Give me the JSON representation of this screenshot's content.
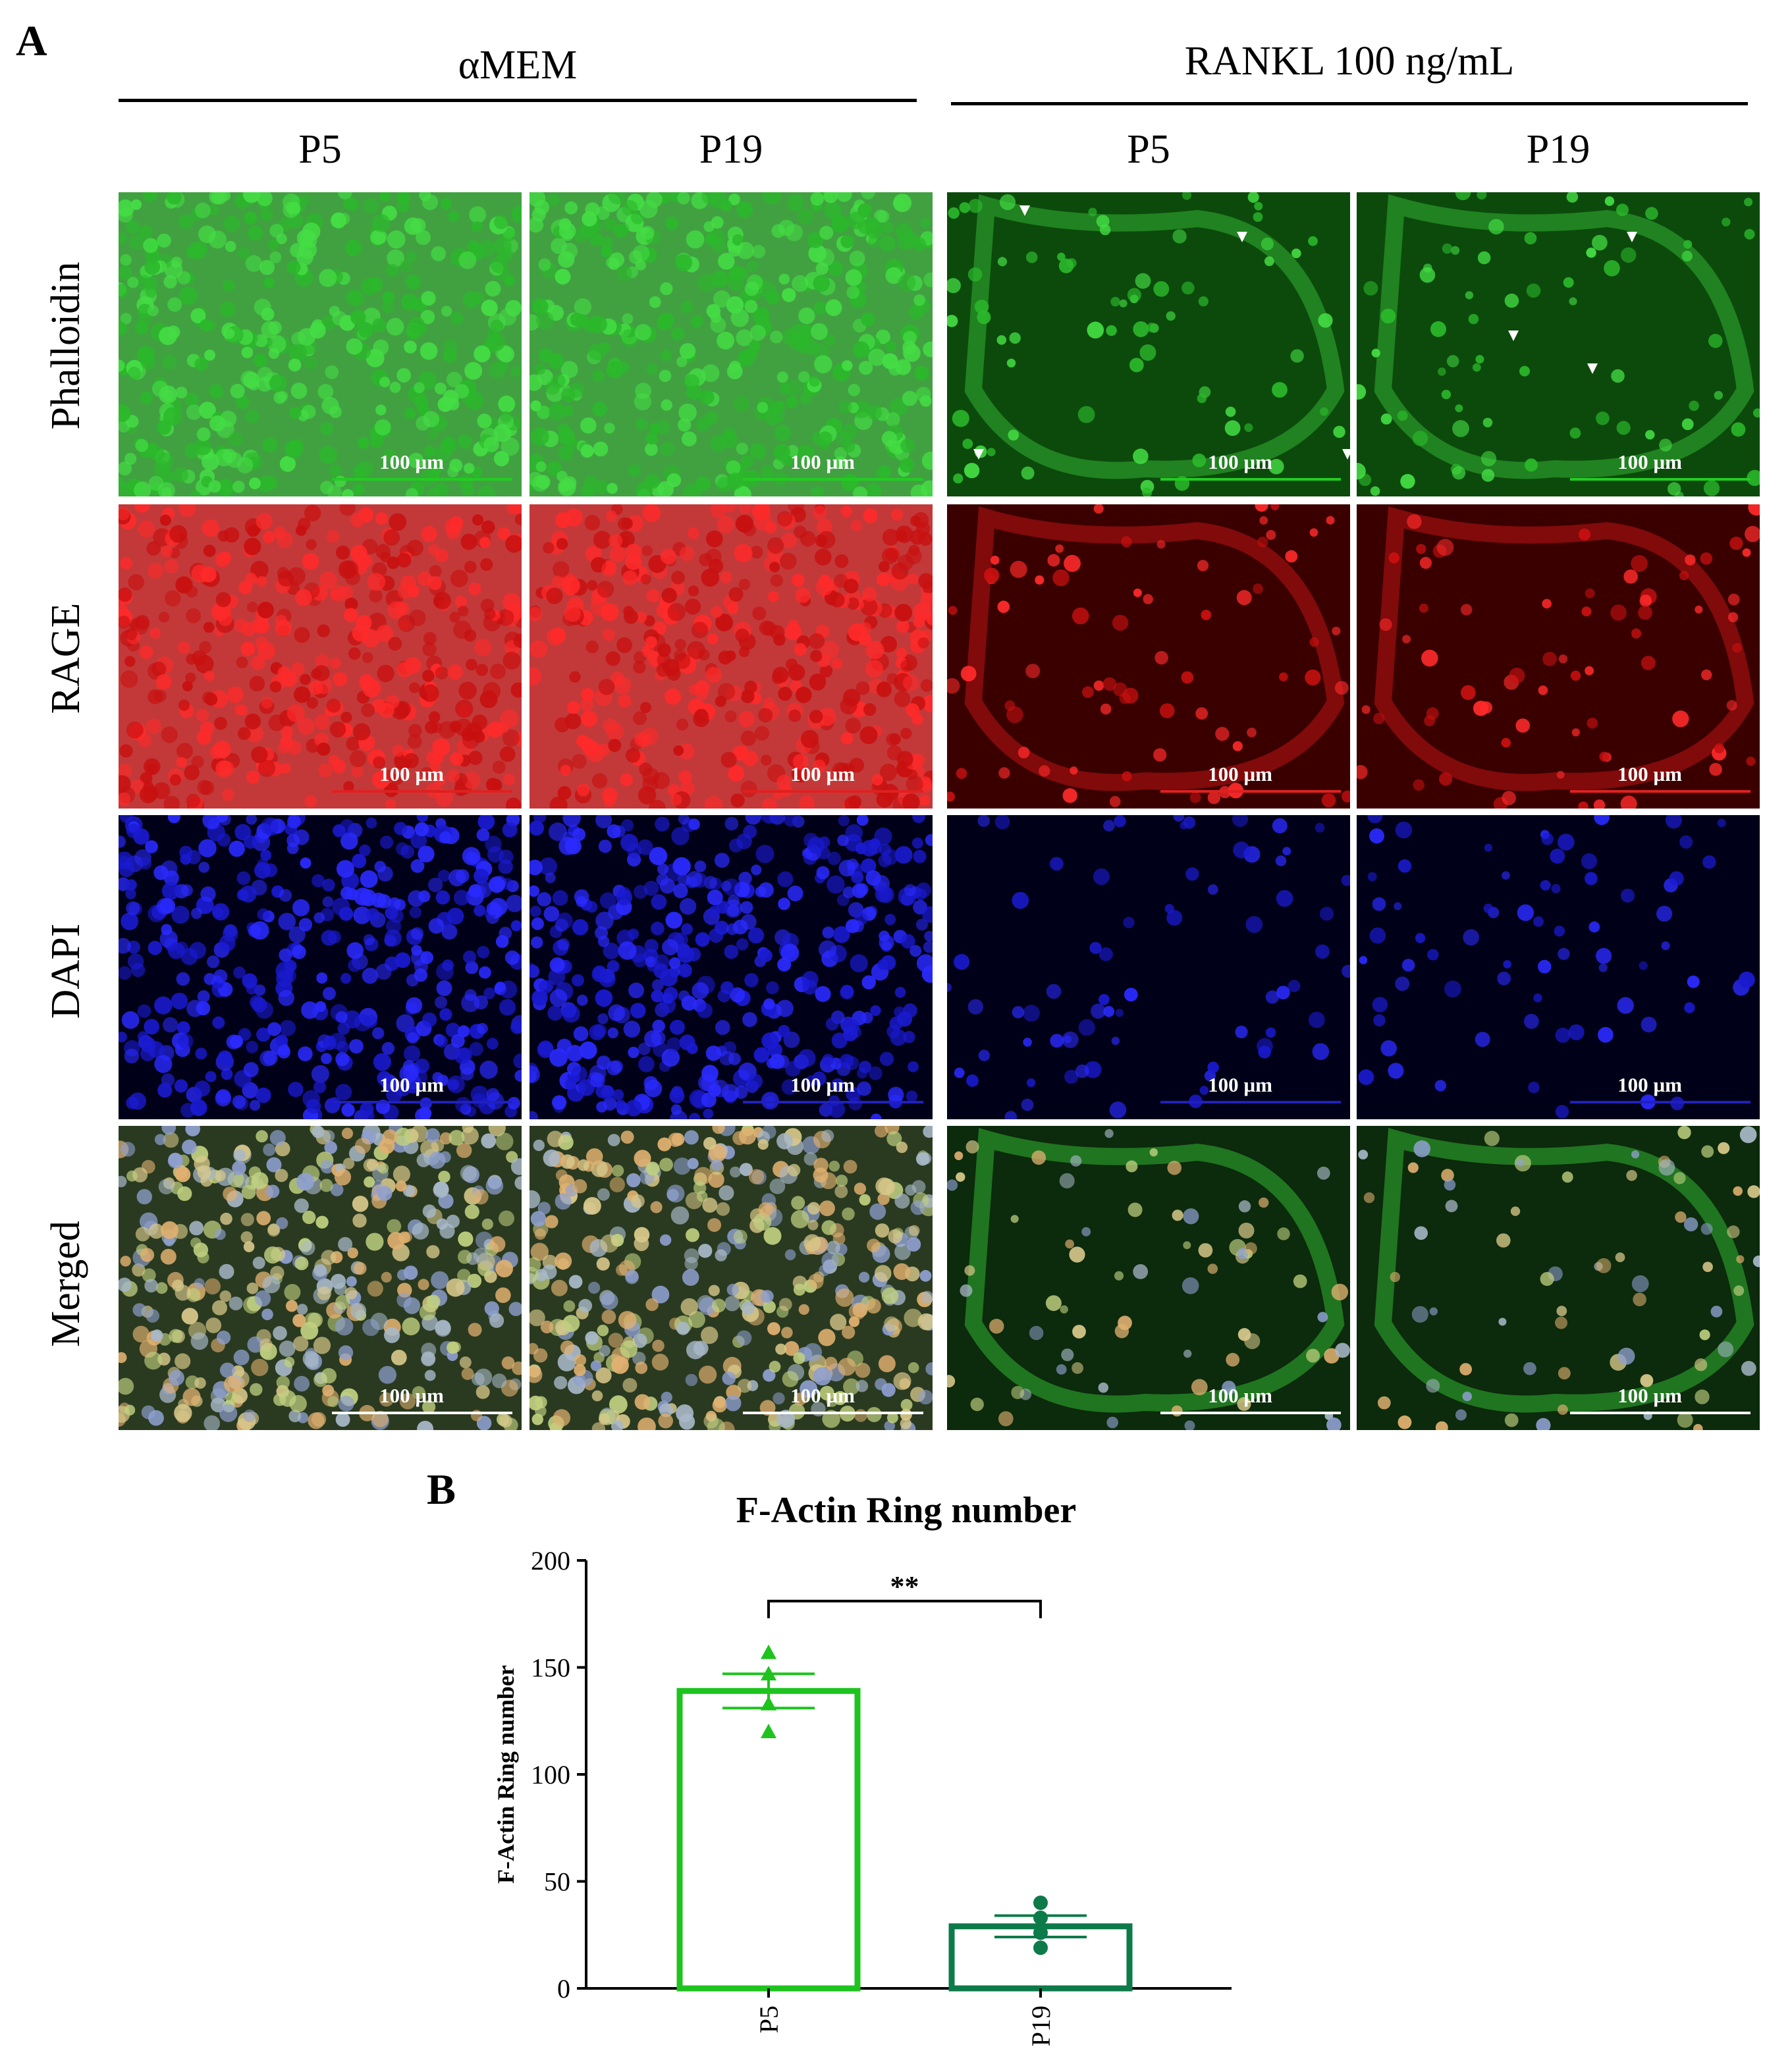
{
  "panel_a": {
    "letter": "A",
    "groups": [
      {
        "title": "αMEM",
        "columns": [
          "P5",
          "P19"
        ]
      },
      {
        "title": "RANKL 100 ng/mL",
        "columns": [
          "P5",
          "P19"
        ]
      }
    ],
    "rows": [
      "Phalloidin",
      "RAGE",
      "DAPI",
      "Merged"
    ],
    "scale_label": "100 µm",
    "channel_colors": {
      "Phalloidin": "#1fa51f",
      "RAGE": "#d41010",
      "DAPI": "#1818d8",
      "Merged": "#6f8a3a"
    },
    "scale_bar_colors": {
      "Phalloidin": "#22cc22",
      "RAGE": "#e02020",
      "DAPI": "#2020c0",
      "Merged": "#ffffff"
    }
  },
  "panel_b": {
    "letter": "B",
    "chart_data": {
      "type": "bar",
      "title": "F-Actin Ring number",
      "ylabel": "F-Actin Ring number",
      "xlabel": "",
      "categories": [
        "P5",
        "P19"
      ],
      "values": [
        139,
        29
      ],
      "error": [
        8,
        5
      ],
      "points": [
        [
          157,
          147,
          133,
          120
        ],
        [
          40,
          33,
          26,
          19
        ]
      ],
      "colors": [
        "#1ec31e",
        "#0d7a4a"
      ],
      "ylim": [
        0,
        200
      ],
      "yticks": [
        0,
        50,
        100,
        150,
        200
      ],
      "significance": {
        "from": 0,
        "to": 1,
        "label": "**"
      }
    }
  }
}
